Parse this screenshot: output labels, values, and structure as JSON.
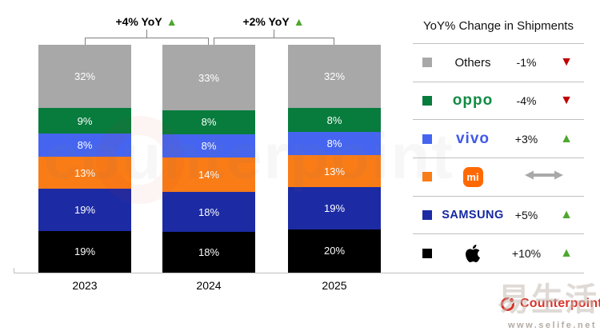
{
  "chart_data": {
    "type": "bar",
    "stacked": true,
    "title": "",
    "categories": [
      "2023",
      "2024",
      "2025"
    ],
    "value_suffix": "%",
    "series": [
      {
        "name": "Apple",
        "color": "#000000",
        "values": [
          19,
          18,
          20
        ]
      },
      {
        "name": "Samsung",
        "color": "#1C2BA4",
        "values": [
          19,
          18,
          19
        ]
      },
      {
        "name": "Xiaomi",
        "color": "#F97C17",
        "values": [
          13,
          14,
          13
        ]
      },
      {
        "name": "vivo",
        "color": "#4565F0",
        "values": [
          8,
          8,
          8
        ]
      },
      {
        "name": "OPPO",
        "color": "#077C3D",
        "values": [
          9,
          8,
          8
        ]
      },
      {
        "name": "Others",
        "color": "#A8A8A8",
        "values": [
          32,
          33,
          32
        ]
      }
    ],
    "annotations": [
      {
        "label": "+4% YoY",
        "direction": "up",
        "span": [
          "2023",
          "2024"
        ]
      },
      {
        "label": "+2% YoY",
        "direction": "up",
        "span": [
          "2024",
          "2025"
        ]
      }
    ],
    "ylim": [
      0,
      100
    ],
    "grid": false,
    "legend_position": "right"
  },
  "icons": {
    "up_triangle": "▲",
    "down_triangle": "▼",
    "flat_arrow": "double-headed-horizontal-arrow"
  },
  "legend": {
    "title": "YoY% Change in Shipments",
    "rows": [
      {
        "name": "Others",
        "label": "Others",
        "swatch": "#A8A8A8",
        "change": "-1%",
        "direction": "down"
      },
      {
        "name": "OPPO",
        "logo_text": "oppo",
        "swatch": "#077C3D",
        "change": "-4%",
        "direction": "down"
      },
      {
        "name": "vivo",
        "logo_text": "vivo",
        "swatch": "#4565F0",
        "change": "+3%",
        "direction": "up"
      },
      {
        "name": "Xiaomi",
        "logo_text": "mi",
        "swatch": "#F97C17",
        "change": "",
        "direction": "flat"
      },
      {
        "name": "Samsung",
        "logo_text": "SAMSUNG",
        "swatch": "#1C2BA4",
        "change": "+5%",
        "direction": "up"
      },
      {
        "name": "Apple",
        "logo_text": "",
        "swatch": "#000000",
        "change": "+10%",
        "direction": "up"
      }
    ]
  },
  "branding": {
    "logo_text": "Counterpoint",
    "logo_color": "#D8332A"
  },
  "brand_colors": {
    "oppo_logo": "#128A45",
    "vivo_logo": "#4159E8",
    "samsung_logo": "#1428A0",
    "xiaomi_badge": "#FF6900",
    "up_arrow": "#4EA72E",
    "down_arrow": "#C00000"
  },
  "watermark": {
    "background_text": "counterpoint",
    "text": "易生活",
    "url": "www.selife.net"
  }
}
